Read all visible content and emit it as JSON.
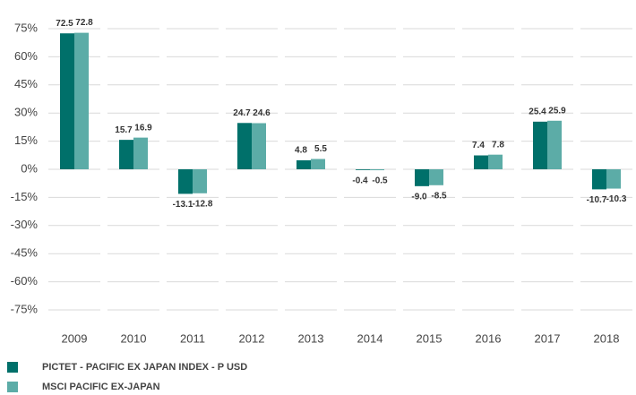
{
  "chart_data": {
    "type": "bar",
    "categories": [
      "2009",
      "2010",
      "2011",
      "2012",
      "2013",
      "2014",
      "2015",
      "2016",
      "2017",
      "2018"
    ],
    "series": [
      {
        "name": "PICTET - PACIFIC EX JAPAN INDEX - P USD",
        "color": "#00706a",
        "values": [
          72.5,
          15.7,
          -13.1,
          24.7,
          4.8,
          -0.4,
          -9.0,
          7.4,
          25.4,
          -10.7
        ],
        "value_labels": [
          "72.5",
          "15.7",
          "-13.1",
          "24.7",
          "4.8",
          "-0.4",
          "-9.0",
          "7.4",
          "25.4",
          "-10.7"
        ]
      },
      {
        "name": "MSCI PACIFIC EX-JAPAN",
        "color": "#5caca7",
        "values": [
          72.8,
          16.9,
          -12.8,
          24.6,
          5.5,
          -0.5,
          -8.5,
          7.8,
          25.9,
          -10.3
        ],
        "value_labels": [
          "72.8",
          "16.9",
          "-12.8",
          "24.6",
          "5.5",
          "-0.5",
          "-8.5",
          "7.8",
          "25.9",
          "-10.3"
        ]
      }
    ],
    "ylim": [
      -80,
      80
    ],
    "yticks": [
      {
        "value": 75,
        "label": "75%"
      },
      {
        "value": 60,
        "label": "60%"
      },
      {
        "value": 45,
        "label": "45%"
      },
      {
        "value": 30,
        "label": "30%"
      },
      {
        "value": 15,
        "label": "15%"
      },
      {
        "value": 0,
        "label": "0%"
      },
      {
        "value": -15,
        "label": "-15%"
      },
      {
        "value": -30,
        "label": "-30%"
      },
      {
        "value": -45,
        "label": "-45%"
      },
      {
        "value": -60,
        "label": "-60%"
      },
      {
        "value": -75,
        "label": "-75%"
      }
    ],
    "grid": true,
    "legend": "bottom-left"
  }
}
